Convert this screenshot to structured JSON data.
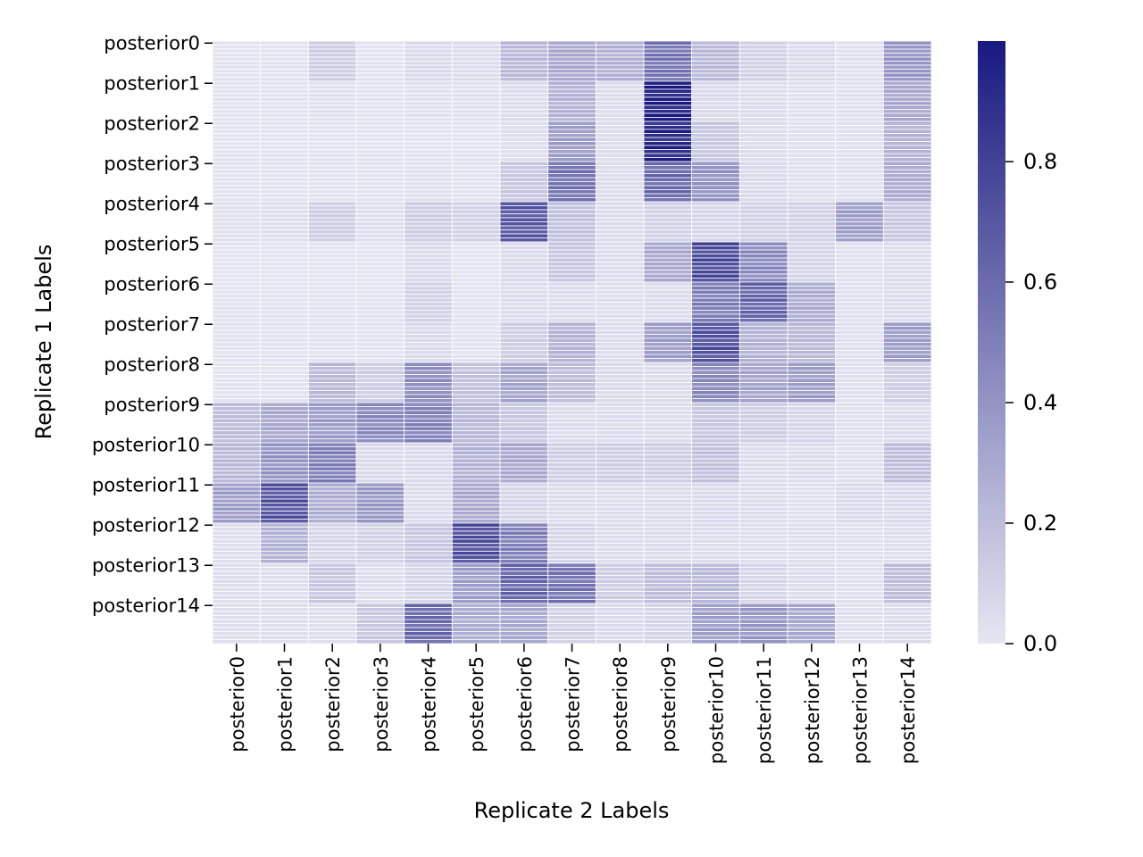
{
  "chart_data": {
    "type": "heatmap",
    "title": "",
    "xlabel": "Replicate 2 Labels",
    "ylabel": "Replicate 1 Labels",
    "x_categories": [
      "posterior0",
      "posterior1",
      "posterior2",
      "posterior3",
      "posterior4",
      "posterior5",
      "posterior6",
      "posterior7",
      "posterior8",
      "posterior9",
      "posterior10",
      "posterior11",
      "posterior12",
      "posterior13",
      "posterior14"
    ],
    "y_tick_labels": [
      "posterior0",
      "posterior1",
      "posterior2",
      "posterior3",
      "posterior4",
      "posterior5",
      "posterior6",
      "posterior7",
      "posterior8",
      "posterior9",
      "posterior10",
      "posterior11",
      "posterior12",
      "posterior13",
      "posterior14"
    ],
    "rows_per_label": 10,
    "colorbar": {
      "range": [
        0,
        1
      ],
      "ticks": [
        0.0,
        0.2,
        0.4,
        0.6,
        0.8
      ],
      "tick_labels": [
        "0.0",
        "0.2",
        "0.4",
        "0.6",
        "0.8"
      ],
      "color_low": "#e6e6f2",
      "color_high": "#191980"
    },
    "grid_line_color": "#ffffff",
    "block_values": [
      [
        0.02,
        0.02,
        0.12,
        0.02,
        0.06,
        0.05,
        0.22,
        0.3,
        0.26,
        0.55,
        0.22,
        0.1,
        0.06,
        0.03,
        0.38
      ],
      [
        0.02,
        0.02,
        0.03,
        0.02,
        0.03,
        0.03,
        0.05,
        0.25,
        0.05,
        0.95,
        0.06,
        0.05,
        0.03,
        0.03,
        0.3
      ],
      [
        0.02,
        0.02,
        0.02,
        0.02,
        0.02,
        0.02,
        0.04,
        0.35,
        0.05,
        0.92,
        0.15,
        0.05,
        0.03,
        0.03,
        0.25
      ],
      [
        0.02,
        0.02,
        0.02,
        0.02,
        0.03,
        0.02,
        0.15,
        0.55,
        0.05,
        0.6,
        0.4,
        0.06,
        0.03,
        0.03,
        0.28
      ],
      [
        0.03,
        0.04,
        0.12,
        0.04,
        0.12,
        0.1,
        0.68,
        0.18,
        0.05,
        0.1,
        0.08,
        0.1,
        0.1,
        0.35,
        0.15
      ],
      [
        0.02,
        0.02,
        0.02,
        0.02,
        0.06,
        0.02,
        0.06,
        0.15,
        0.05,
        0.3,
        0.75,
        0.45,
        0.08,
        0.03,
        0.05
      ],
      [
        0.02,
        0.02,
        0.02,
        0.02,
        0.1,
        0.02,
        0.05,
        0.05,
        0.04,
        0.05,
        0.5,
        0.62,
        0.28,
        0.03,
        0.05
      ],
      [
        0.02,
        0.02,
        0.02,
        0.02,
        0.06,
        0.02,
        0.12,
        0.25,
        0.05,
        0.35,
        0.72,
        0.25,
        0.22,
        0.03,
        0.35
      ],
      [
        0.02,
        0.02,
        0.22,
        0.12,
        0.42,
        0.18,
        0.32,
        0.2,
        0.06,
        0.05,
        0.45,
        0.32,
        0.35,
        0.03,
        0.12
      ],
      [
        0.2,
        0.3,
        0.35,
        0.45,
        0.48,
        0.22,
        0.15,
        0.05,
        0.05,
        0.05,
        0.15,
        0.12,
        0.08,
        0.03,
        0.05
      ],
      [
        0.22,
        0.4,
        0.5,
        0.06,
        0.06,
        0.25,
        0.3,
        0.12,
        0.12,
        0.12,
        0.18,
        0.05,
        0.05,
        0.03,
        0.2
      ],
      [
        0.35,
        0.7,
        0.28,
        0.38,
        0.05,
        0.3,
        0.08,
        0.05,
        0.05,
        0.05,
        0.06,
        0.05,
        0.03,
        0.06,
        0.06
      ],
      [
        0.04,
        0.25,
        0.08,
        0.1,
        0.15,
        0.72,
        0.5,
        0.08,
        0.05,
        0.05,
        0.05,
        0.04,
        0.04,
        0.03,
        0.04
      ],
      [
        0.04,
        0.04,
        0.15,
        0.04,
        0.08,
        0.35,
        0.62,
        0.55,
        0.12,
        0.2,
        0.22,
        0.08,
        0.05,
        0.03,
        0.2
      ],
      [
        0.04,
        0.04,
        0.04,
        0.15,
        0.6,
        0.28,
        0.3,
        0.1,
        0.06,
        0.08,
        0.35,
        0.38,
        0.3,
        0.03,
        0.05
      ]
    ]
  }
}
